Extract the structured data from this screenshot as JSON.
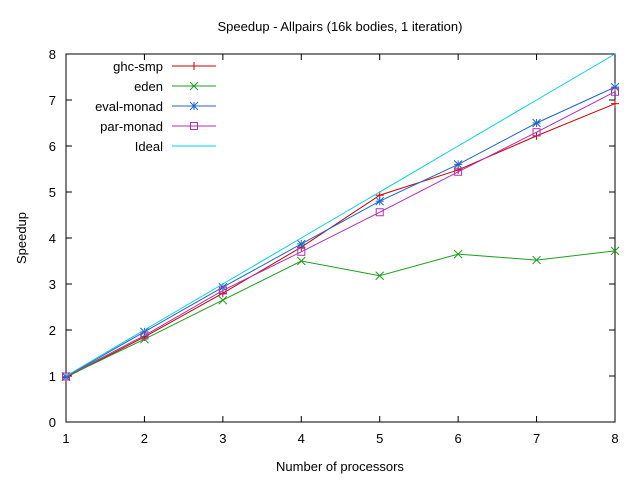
{
  "chart_data": {
    "type": "line",
    "title": "Speedup - Allpairs (16k bodies, 1 iteration)",
    "xlabel": "Number of processors",
    "ylabel": "Speedup",
    "xlim": [
      1,
      8
    ],
    "ylim": [
      0,
      8
    ],
    "xticks": [
      1,
      2,
      3,
      4,
      5,
      6,
      7,
      8
    ],
    "yticks": [
      0,
      1,
      2,
      3,
      4,
      5,
      6,
      7,
      8
    ],
    "grid": false,
    "legend_position": "top-left",
    "x": [
      1,
      2,
      3,
      4,
      5,
      6,
      7,
      8
    ],
    "series": [
      {
        "name": "ghc-smp",
        "color": "#cc0000",
        "marker": "plus",
        "values": [
          0.97,
          1.85,
          2.8,
          3.8,
          4.93,
          5.48,
          6.22,
          6.92
        ]
      },
      {
        "name": "eden",
        "color": "#1e9d1e",
        "marker": "cross",
        "values": [
          0.98,
          1.8,
          2.65,
          3.5,
          3.18,
          3.65,
          3.52,
          3.72
        ]
      },
      {
        "name": "eval-monad",
        "color": "#2066cc",
        "marker": "star",
        "values": [
          0.99,
          1.96,
          2.93,
          3.87,
          4.8,
          5.6,
          6.5,
          7.28
        ]
      },
      {
        "name": "par-monad",
        "color": "#b030b0",
        "marker": "square",
        "values": [
          0.99,
          1.88,
          2.86,
          3.7,
          4.56,
          5.44,
          6.3,
          7.18
        ]
      },
      {
        "name": "Ideal",
        "color": "#00d0e0",
        "marker": "none",
        "values": [
          1,
          2,
          3,
          4,
          5,
          6,
          7,
          8
        ]
      }
    ]
  }
}
